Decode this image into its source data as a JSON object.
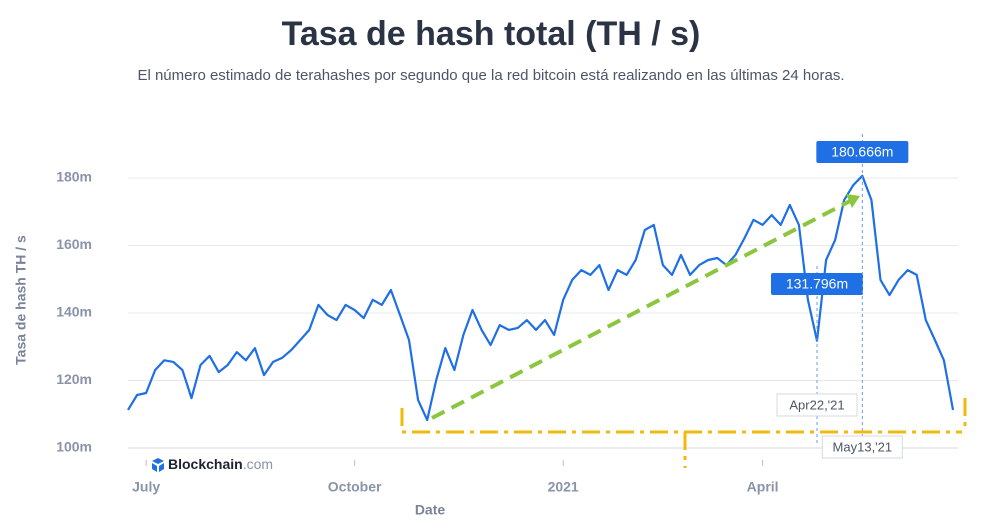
{
  "chart_data": {
    "type": "line",
    "title": "Tasa de hash total (TH / s)",
    "subtitle": "El número estimado de terahashes por segundo que la red bitcoin está realizando en las últimas 24 horas.",
    "y_label": "Tasa de hash TH / s",
    "x_label": "Date",
    "brand": [
      "Blockchain",
      ".com"
    ],
    "color": "#1f6fe5",
    "grid": true,
    "ylim": [
      100,
      192
    ],
    "yticks": [
      {
        "value": 100,
        "label": "100m"
      },
      {
        "value": 120,
        "label": "120m"
      },
      {
        "value": 140,
        "label": "140m"
      },
      {
        "value": 160,
        "label": "160m"
      },
      {
        "value": 180,
        "label": "180m"
      }
    ],
    "categories": [
      null,
      null,
      "July",
      null,
      null,
      null,
      null,
      null,
      null,
      null,
      null,
      null,
      null,
      null,
      null,
      null,
      null,
      null,
      null,
      null,
      null,
      null,
      null,
      null,
      null,
      "October",
      null,
      null,
      null,
      null,
      null,
      null,
      null,
      null,
      null,
      null,
      null,
      null,
      null,
      null,
      null,
      null,
      null,
      null,
      null,
      null,
      null,
      null,
      "2021",
      null,
      null,
      null,
      null,
      null,
      null,
      null,
      null,
      null,
      null,
      null,
      null,
      null,
      null,
      null,
      null,
      null,
      null,
      null,
      null,
      null,
      "April",
      null,
      null,
      null,
      null,
      null,
      null,
      null,
      null,
      null,
      null,
      null,
      null,
      null,
      null,
      null,
      null,
      null,
      null,
      null,
      null,
      null
    ],
    "values": [
      111.3,
      115.7,
      116.3,
      123.1,
      126,
      125.5,
      123.1,
      114.8,
      124.6,
      127.3,
      122.5,
      124.6,
      128.4,
      126,
      129.6,
      121.6,
      125.5,
      126.7,
      129,
      132,
      135,
      142.4,
      139.4,
      137.9,
      142.4,
      140.9,
      138.5,
      143.9,
      142.4,
      146.8,
      139.4,
      132,
      114.2,
      108.3,
      120.1,
      129.6,
      123.1,
      133.5,
      140.9,
      135,
      130.5,
      136.4,
      135,
      135.6,
      137.9,
      135,
      137.9,
      133.5,
      143.9,
      149.8,
      152.7,
      151.3,
      154.2,
      146.8,
      152.7,
      151.3,
      155.7,
      164.6,
      166.1,
      154.2,
      151.3,
      157.2,
      151.3,
      154.2,
      155.7,
      156.3,
      154.2,
      157.2,
      162.2,
      167.6,
      166.1,
      169,
      166.1,
      172,
      166.1,
      143.9,
      131.796,
      155.7,
      161.6,
      173.5,
      177.9,
      180.666,
      173.5,
      149.8,
      145.3,
      149.8,
      152.7,
      151.3,
      137.9,
      132,
      126,
      111.3
    ],
    "value_labels": [
      null,
      null,
      null,
      null,
      null,
      null,
      null,
      null,
      null,
      null,
      null,
      null,
      null,
      null,
      null,
      null,
      null,
      null,
      null,
      null,
      null,
      null,
      null,
      null,
      null,
      null,
      null,
      null,
      null,
      null,
      null,
      null,
      null,
      null,
      null,
      null,
      null,
      null,
      null,
      null,
      null,
      null,
      null,
      null,
      null,
      null,
      null,
      null,
      null,
      null,
      null,
      null,
      null,
      null,
      null,
      null,
      null,
      null,
      null,
      null,
      null,
      null,
      null,
      null,
      null,
      null,
      null,
      null,
      null,
      null,
      null,
      null,
      null,
      null,
      null,
      null,
      "131.796m",
      null,
      null,
      null,
      null,
      "180.666m",
      null,
      null,
      null,
      null,
      null,
      null,
      null,
      null,
      null,
      null
    ],
    "annotations": [
      "Apr22,'21",
      "May13,'21"
    ]
  }
}
